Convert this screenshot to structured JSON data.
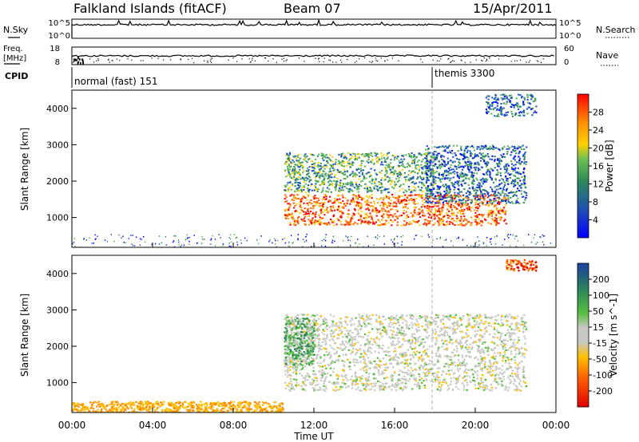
{
  "header": {
    "station": "Falkland Islands (fitACF)",
    "beam": "Beam 07",
    "date": "15/Apr/2011"
  },
  "noise_panel": {
    "left_label": "N.Sky",
    "left_ticks": [
      "10^5",
      "10^0"
    ],
    "right_label": "N.Search",
    "right_ticks": [
      "10^5",
      "10^0"
    ]
  },
  "freq_panel": {
    "left_label_1": "Freq.",
    "left_label_2": "[MHz]",
    "left_ticks": [
      "18",
      "8"
    ],
    "right_label": "Nave",
    "right_ticks": [
      "60",
      "0"
    ]
  },
  "cpid_panel": {
    "label": "CPID",
    "programs": [
      {
        "name": "normal (fast) 151",
        "start": "00:00"
      },
      {
        "name": "themis 3300",
        "start": "18:00"
      }
    ]
  },
  "power_panel": {
    "ylabel": "Slant Range [km]",
    "yticks": [
      "4000",
      "3000",
      "2000",
      "1000"
    ],
    "colorbar_label": "Power [dB]",
    "colorbar_ticks": [
      "28",
      "24",
      "20",
      "16",
      "12",
      "8",
      "4"
    ]
  },
  "velocity_panel": {
    "ylabel": "Slant Range [km]",
    "yticks": [
      "4000",
      "3000",
      "2000",
      "1000"
    ],
    "colorbar_label": "Velocity [m s^-1]",
    "colorbar_ticks": [
      "200",
      "100",
      "50",
      "15",
      "-15",
      "-50",
      "-100",
      "-200"
    ]
  },
  "xaxis": {
    "ticks": [
      "00:00",
      "04:00",
      "08:00",
      "12:00",
      "16:00",
      "20:00",
      "00:00"
    ],
    "label": "Time UT"
  },
  "colors": {
    "power_scale": [
      "#0000ff",
      "#1a4fc8",
      "#2e8b57",
      "#58b25a",
      "#ffd000",
      "#ff9900",
      "#ff5a00",
      "#ff0000"
    ],
    "velocity_scale": [
      "#1a3fa0",
      "#2f6fc9",
      "#2e8b57",
      "#58c040",
      "#c8c8c4",
      "#ffc000",
      "#ff8c00",
      "#ff4a00",
      "#e00000"
    ],
    "ground_scatter": "#c8c8c4"
  },
  "chart_data": [
    {
      "type": "heatmap",
      "title": "Power",
      "x_range_hours": [
        0,
        24
      ],
      "y_range_km": [
        180,
        4500
      ],
      "regions": [
        {
          "t_start": 10.5,
          "t_end": 21.5,
          "r_min": 800,
          "r_max": 1650,
          "power_db": 28
        },
        {
          "t_start": 10.5,
          "t_end": 18,
          "r_min": 1700,
          "r_max": 2800,
          "power_db": 16
        },
        {
          "t_start": 17.5,
          "t_end": 22.5,
          "r_min": 1400,
          "r_max": 3000,
          "power_db": 8
        },
        {
          "t_start": 20.5,
          "t_end": 23,
          "r_min": 3800,
          "r_max": 4400,
          "power_db": 8
        }
      ]
    },
    {
      "type": "heatmap",
      "title": "Velocity",
      "x_range_hours": [
        0,
        24
      ],
      "y_range_km": [
        180,
        4500
      ],
      "regions": [
        {
          "t_start": 10.5,
          "t_end": 22.5,
          "r_min": 800,
          "r_max": 2900,
          "velocity": 0
        },
        {
          "t_start": 10.5,
          "t_end": 12,
          "r_min": 1500,
          "r_max": 2800,
          "velocity": 30
        },
        {
          "t_start": 21.5,
          "t_end": 23,
          "r_min": 4100,
          "r_max": 4400,
          "velocity": -200
        },
        {
          "t_start": 0,
          "t_end": 10.5,
          "r_min": 180,
          "r_max": 500,
          "velocity": -50
        }
      ]
    }
  ]
}
